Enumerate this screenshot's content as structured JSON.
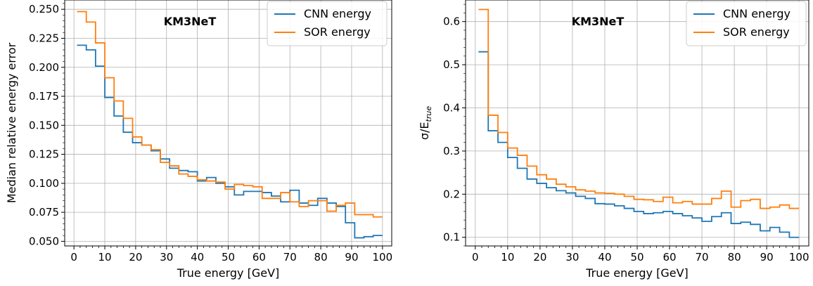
{
  "colors": {
    "cnn": "#1f77b4",
    "sor": "#ff7f0e",
    "grid": "#b0b0b0",
    "axis": "#000000"
  },
  "chart_data": [
    {
      "type": "line",
      "title": "",
      "annotation": "KM3NeT",
      "xlabel": "True energy [GeV]",
      "ylabel": "Median relative energy error",
      "xlim": [
        -3,
        103
      ],
      "ylim": [
        0.046,
        0.258
      ],
      "xticks": [
        0,
        10,
        20,
        30,
        40,
        50,
        60,
        70,
        80,
        90,
        100
      ],
      "xtick_labels": [
        "0",
        "10",
        "20",
        "30",
        "40",
        "50",
        "60",
        "70",
        "80",
        "90",
        "100"
      ],
      "yticks": [
        0.05,
        0.075,
        0.1,
        0.125,
        0.15,
        0.175,
        0.2,
        0.225,
        0.25
      ],
      "ytick_labels": [
        "0.050",
        "0.075",
        "0.100",
        "0.125",
        "0.150",
        "0.175",
        "0.200",
        "0.225",
        "0.250"
      ],
      "grid": true,
      "legend_position": "top-right",
      "bin_edges": [
        1,
        4,
        7,
        10,
        13,
        16,
        19,
        22,
        25,
        28,
        31,
        34,
        37,
        40,
        43,
        46,
        49,
        52,
        55,
        58,
        61,
        64,
        67,
        70,
        73,
        76,
        79,
        82,
        85,
        88,
        91,
        94,
        97,
        100
      ],
      "series": [
        {
          "name": "CNN energy",
          "color": "#1f77b4",
          "values": [
            0.219,
            0.215,
            0.201,
            0.174,
            0.158,
            0.144,
            0.135,
            0.133,
            0.128,
            0.121,
            0.113,
            0.111,
            0.11,
            0.102,
            0.105,
            0.1,
            0.097,
            0.09,
            0.093,
            0.093,
            0.092,
            0.089,
            0.084,
            0.094,
            0.083,
            0.081,
            0.087,
            0.083,
            0.08,
            0.066,
            0.053,
            0.054,
            0.055
          ]
        },
        {
          "name": "SOR energy",
          "color": "#ff7f0e",
          "values": [
            0.248,
            0.239,
            0.221,
            0.191,
            0.171,
            0.156,
            0.14,
            0.133,
            0.129,
            0.118,
            0.115,
            0.108,
            0.106,
            0.103,
            0.102,
            0.101,
            0.095,
            0.099,
            0.098,
            0.097,
            0.087,
            0.087,
            0.092,
            0.084,
            0.08,
            0.085,
            0.085,
            0.076,
            0.081,
            0.083,
            0.073,
            0.073,
            0.071
          ]
        }
      ]
    },
    {
      "type": "line",
      "title": "",
      "annotation": "KM3NeT",
      "xlabel": "True energy [GeV]",
      "ylabel": "σ/E",
      "ylabel_subscript": "true",
      "xlim": [
        -3,
        103
      ],
      "ylim": [
        0.08,
        0.65
      ],
      "xticks": [
        0,
        10,
        20,
        30,
        40,
        50,
        60,
        70,
        80,
        90,
        100
      ],
      "xtick_labels": [
        "0",
        "10",
        "20",
        "30",
        "40",
        "50",
        "60",
        "70",
        "80",
        "90",
        "100"
      ],
      "yticks": [
        0.1,
        0.2,
        0.3,
        0.4,
        0.5,
        0.6
      ],
      "ytick_labels": [
        "0.1",
        "0.2",
        "0.3",
        "0.4",
        "0.5",
        "0.6"
      ],
      "grid": true,
      "legend_position": "top-right",
      "bin_edges": [
        1,
        4,
        7,
        10,
        13,
        16,
        19,
        22,
        25,
        28,
        31,
        34,
        37,
        40,
        43,
        46,
        49,
        52,
        55,
        58,
        61,
        64,
        67,
        70,
        73,
        76,
        79,
        82,
        85,
        88,
        91,
        94,
        97,
        100
      ],
      "series": [
        {
          "name": "CNN energy",
          "color": "#1f77b4",
          "values": [
            0.53,
            0.347,
            0.32,
            0.285,
            0.26,
            0.235,
            0.225,
            0.215,
            0.208,
            0.203,
            0.195,
            0.19,
            0.178,
            0.177,
            0.173,
            0.167,
            0.16,
            0.155,
            0.157,
            0.16,
            0.155,
            0.15,
            0.145,
            0.137,
            0.148,
            0.157,
            0.132,
            0.135,
            0.13,
            0.115,
            0.123,
            0.112,
            0.1
          ]
        },
        {
          "name": "SOR energy",
          "color": "#ff7f0e",
          "values": [
            0.628,
            0.383,
            0.343,
            0.307,
            0.29,
            0.265,
            0.245,
            0.235,
            0.223,
            0.217,
            0.21,
            0.207,
            0.203,
            0.202,
            0.2,
            0.195,
            0.188,
            0.187,
            0.183,
            0.193,
            0.18,
            0.183,
            0.177,
            0.177,
            0.19,
            0.207,
            0.17,
            0.185,
            0.188,
            0.167,
            0.17,
            0.175,
            0.167
          ]
        }
      ]
    }
  ]
}
